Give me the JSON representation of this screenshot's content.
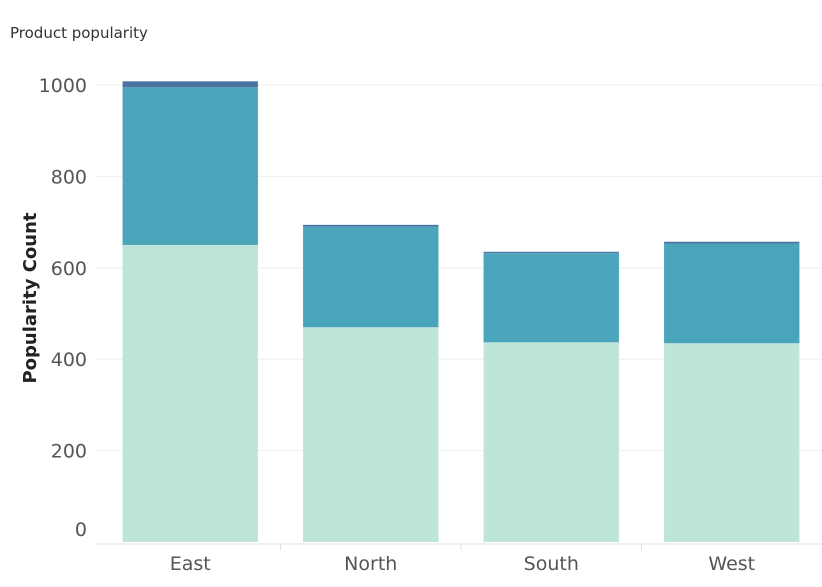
{
  "chart_data": {
    "type": "bar",
    "stacked": true,
    "title": "Product popularity",
    "xlabel": "",
    "ylabel": "Popularity Count",
    "categories": [
      "East",
      "North",
      "South",
      "West"
    ],
    "series": [
      {
        "values": [
          650,
          470,
          437,
          435
        ],
        "color": "#bde5da"
      },
      {
        "values": [
          345,
          220,
          195,
          218
        ],
        "color": "#4aa5ba"
      },
      {
        "values": [
          13,
          4,
          3,
          4
        ],
        "color": "#4a73a3"
      }
    ],
    "ylim": [
      0,
      1000
    ],
    "yticks": [
      0,
      200,
      400,
      600,
      800,
      1000
    ],
    "grid": true,
    "legend": "none"
  }
}
